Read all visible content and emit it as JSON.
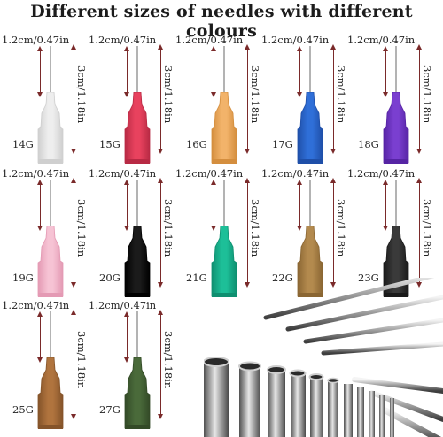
{
  "title": "Different sizes of needles with different colours",
  "needle_length_label": "1.2cm/0.47in",
  "total_length_label": "3cm/1.18in",
  "needles": [
    {
      "gauge": "14G",
      "color": "#eeeeee",
      "dark": "#cfcfcf"
    },
    {
      "gauge": "15G",
      "color": "#e8425e",
      "dark": "#b82a44"
    },
    {
      "gauge": "16G",
      "color": "#f2b36a",
      "dark": "#d48e3e"
    },
    {
      "gauge": "17G",
      "color": "#2f6fd8",
      "dark": "#1f4fa8"
    },
    {
      "gauge": "18G",
      "color": "#7a3fd0",
      "dark": "#5624a4"
    },
    {
      "gauge": "19G",
      "color": "#f6c3d4",
      "dark": "#e49ab4"
    },
    {
      "gauge": "20G",
      "color": "#1b1b1b",
      "dark": "#000000"
    },
    {
      "gauge": "21G",
      "color": "#1dbf98",
      "dark": "#0f8f70"
    },
    {
      "gauge": "22G",
      "color": "#b38a4e",
      "dark": "#8a6633"
    },
    {
      "gauge": "23G",
      "color": "#3a3a3a",
      "dark": "#1a1a1a"
    },
    {
      "gauge": "25G",
      "color": "#b0743e",
      "dark": "#85542a"
    },
    {
      "gauge": "27G",
      "color": "#4a6a3a",
      "dark": "#334a27"
    }
  ]
}
